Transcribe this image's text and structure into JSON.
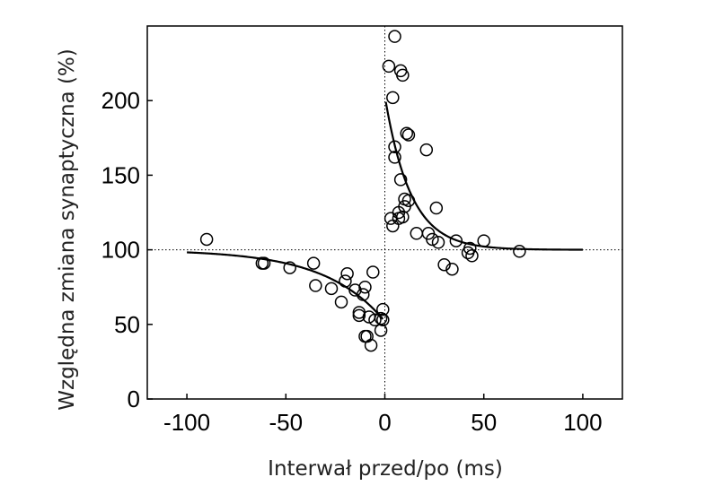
{
  "chart_data": {
    "type": "scatter",
    "xlabel": "Interwał przed/po (ms)",
    "ylabel": "Względna zmiana synaptyczna (%)",
    "xlim": [
      -120,
      120
    ],
    "ylim": [
      0,
      250
    ],
    "xticks": [
      -100,
      -50,
      0,
      50,
      100
    ],
    "yticks": [
      0,
      50,
      100,
      150,
      200
    ],
    "xtick_labels": [
      "-100",
      "-50",
      "0",
      "50",
      "100"
    ],
    "ytick_labels": [
      "0",
      "50",
      "100",
      "150",
      "200"
    ],
    "reference_lines": {
      "horizontal": 100,
      "vertical": 0,
      "style": "dotted"
    },
    "grid": false,
    "legend": "none",
    "points": [
      {
        "x": -90,
        "y": 107
      },
      {
        "x": -62,
        "y": 91
      },
      {
        "x": -61,
        "y": 91
      },
      {
        "x": -48,
        "y": 88
      },
      {
        "x": -36,
        "y": 91
      },
      {
        "x": -35,
        "y": 76
      },
      {
        "x": -27,
        "y": 74
      },
      {
        "x": -22,
        "y": 65
      },
      {
        "x": -20,
        "y": 79
      },
      {
        "x": -19,
        "y": 84
      },
      {
        "x": -15,
        "y": 73
      },
      {
        "x": -13,
        "y": 58
      },
      {
        "x": -13,
        "y": 56
      },
      {
        "x": -11,
        "y": 70
      },
      {
        "x": -10,
        "y": 75
      },
      {
        "x": -10,
        "y": 42
      },
      {
        "x": -9,
        "y": 42
      },
      {
        "x": -8,
        "y": 55
      },
      {
        "x": -7,
        "y": 36
      },
      {
        "x": -6,
        "y": 85
      },
      {
        "x": -5,
        "y": 53
      },
      {
        "x": -2,
        "y": 54
      },
      {
        "x": -2,
        "y": 46
      },
      {
        "x": -1,
        "y": 60
      },
      {
        "x": -1,
        "y": 53
      },
      {
        "x": 2,
        "y": 223
      },
      {
        "x": 3,
        "y": 121
      },
      {
        "x": 4,
        "y": 202
      },
      {
        "x": 4,
        "y": 116
      },
      {
        "x": 5,
        "y": 243
      },
      {
        "x": 5,
        "y": 162
      },
      {
        "x": 5,
        "y": 169
      },
      {
        "x": 7,
        "y": 121
      },
      {
        "x": 7,
        "y": 125
      },
      {
        "x": 8,
        "y": 147
      },
      {
        "x": 8,
        "y": 220
      },
      {
        "x": 9,
        "y": 217
      },
      {
        "x": 9,
        "y": 122
      },
      {
        "x": 10,
        "y": 129
      },
      {
        "x": 10,
        "y": 134
      },
      {
        "x": 11,
        "y": 178
      },
      {
        "x": 12,
        "y": 177
      },
      {
        "x": 12,
        "y": 133
      },
      {
        "x": 16,
        "y": 111
      },
      {
        "x": 21,
        "y": 167
      },
      {
        "x": 22,
        "y": 111
      },
      {
        "x": 24,
        "y": 107
      },
      {
        "x": 26,
        "y": 128
      },
      {
        "x": 27,
        "y": 105
      },
      {
        "x": 30,
        "y": 90
      },
      {
        "x": 34,
        "y": 87
      },
      {
        "x": 36,
        "y": 106
      },
      {
        "x": 42,
        "y": 98
      },
      {
        "x": 43,
        "y": 101
      },
      {
        "x": 44,
        "y": 96
      },
      {
        "x": 50,
        "y": 106
      },
      {
        "x": 68,
        "y": 99
      }
    ],
    "fit_curves": [
      {
        "x_range": [
          -100,
          -1
        ],
        "baseline": 100,
        "amplitude": -48,
        "tau": 30
      },
      {
        "x_range": [
          0.5,
          100
        ],
        "baseline": 100,
        "amplitude": 103,
        "tau": 13
      }
    ]
  }
}
